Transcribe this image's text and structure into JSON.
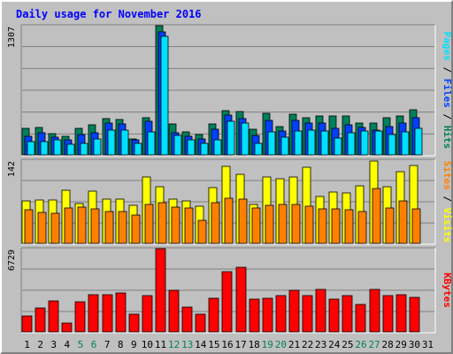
{
  "title": "Daily usage for November 2016",
  "colors": {
    "background": "#c0c0c0",
    "plot": "#c0c0c0",
    "title": "#0000ff",
    "hits": "#00805c",
    "files": "#0040ff",
    "pages": "#00e0ff",
    "visits": "#ffff00",
    "sites": "#ff8000",
    "kbytes": "#ff0000",
    "weekend_label": "#00805c",
    "day_label": "#000000"
  },
  "chart_data": [
    {
      "type": "bar",
      "panel": "hits-files-pages",
      "ymax_label": "1307",
      "ylim": [
        0,
        1307
      ],
      "grid": true,
      "legend": [
        "Pages",
        "Files",
        "Hits"
      ],
      "categories": [
        "1",
        "2",
        "3",
        "4",
        "5",
        "6",
        "7",
        "8",
        "9",
        "10",
        "11",
        "12",
        "13",
        "14",
        "15",
        "16",
        "17",
        "18",
        "19",
        "20",
        "21",
        "22",
        "23",
        "24",
        "25",
        "26",
        "27",
        "28",
        "29",
        "30",
        "31"
      ],
      "series": [
        {
          "name": "Hits",
          "values": [
            270,
            280,
            215,
            190,
            265,
            300,
            370,
            360,
            165,
            380,
            1307,
            310,
            230,
            210,
            310,
            450,
            440,
            260,
            420,
            290,
            410,
            380,
            390,
            390,
            390,
            320,
            320,
            375,
            390,
            460,
            0
          ]
        },
        {
          "name": "Files",
          "values": [
            190,
            225,
            175,
            150,
            210,
            225,
            320,
            310,
            150,
            340,
            1240,
            225,
            190,
            160,
            260,
            400,
            370,
            200,
            350,
            240,
            350,
            320,
            320,
            270,
            300,
            275,
            255,
            285,
            325,
            375,
            0
          ]
        },
        {
          "name": "Pages",
          "values": [
            130,
            130,
            150,
            110,
            120,
            160,
            250,
            250,
            120,
            230,
            1200,
            200,
            150,
            120,
            150,
            340,
            320,
            120,
            230,
            180,
            240,
            250,
            240,
            170,
            220,
            240,
            240,
            210,
            230,
            270,
            0
          ]
        }
      ]
    },
    {
      "type": "bar",
      "panel": "visits-sites",
      "ymax_label": "142",
      "ylim": [
        0,
        142
      ],
      "grid": true,
      "legend": [
        "Sites",
        "Visits"
      ],
      "categories": [
        "1",
        "2",
        "3",
        "4",
        "5",
        "6",
        "7",
        "8",
        "9",
        "10",
        "11",
        "12",
        "13",
        "14",
        "15",
        "16",
        "17",
        "18",
        "19",
        "20",
        "21",
        "22",
        "23",
        "24",
        "25",
        "26",
        "27",
        "28",
        "29",
        "30",
        "31"
      ],
      "series": [
        {
          "name": "Visits",
          "values": [
            73,
            74,
            74,
            90,
            68,
            89,
            76,
            75,
            65,
            114,
            97,
            75,
            72,
            63,
            95,
            131,
            118,
            66,
            114,
            110,
            113,
            130,
            80,
            88,
            86,
            98,
            140,
            96,
            122,
            133,
            0
          ]
        },
        {
          "name": "Sites",
          "values": [
            57,
            53,
            51,
            60,
            62,
            59,
            55,
            54,
            49,
            66,
            69,
            62,
            60,
            40,
            69,
            77,
            75,
            60,
            65,
            67,
            67,
            64,
            59,
            59,
            57,
            55,
            94,
            60,
            72,
            59,
            0
          ]
        }
      ]
    },
    {
      "type": "bar",
      "panel": "kbytes",
      "ymax_label": "6729",
      "ylim": [
        0,
        6729
      ],
      "grid": true,
      "legend": [
        "KBytes"
      ],
      "categories": [
        "1",
        "2",
        "3",
        "4",
        "5",
        "6",
        "7",
        "8",
        "9",
        "10",
        "11",
        "12",
        "13",
        "14",
        "15",
        "16",
        "17",
        "18",
        "19",
        "20",
        "21",
        "22",
        "23",
        "24",
        "25",
        "26",
        "27",
        "28",
        "29",
        "30",
        "31"
      ],
      "series": [
        {
          "name": "KBytes",
          "values": [
            1320,
            1900,
            2480,
            700,
            2400,
            3000,
            3000,
            3150,
            1450,
            2950,
            6729,
            3400,
            1990,
            1410,
            2690,
            4840,
            5210,
            2680,
            2750,
            2960,
            3350,
            2910,
            3450,
            2640,
            2910,
            2190,
            3420,
            2930,
            3000,
            2760,
            0
          ]
        }
      ]
    }
  ],
  "days": [
    "1",
    "2",
    "3",
    "4",
    "5",
    "6",
    "7",
    "8",
    "9",
    "10",
    "11",
    "12",
    "13",
    "14",
    "15",
    "16",
    "17",
    "18",
    "19",
    "20",
    "21",
    "22",
    "23",
    "24",
    "25",
    "26",
    "27",
    "28",
    "29",
    "30",
    "31"
  ],
  "weekend_days": [
    "5",
    "6",
    "12",
    "13",
    "19",
    "20",
    "26",
    "27"
  ]
}
